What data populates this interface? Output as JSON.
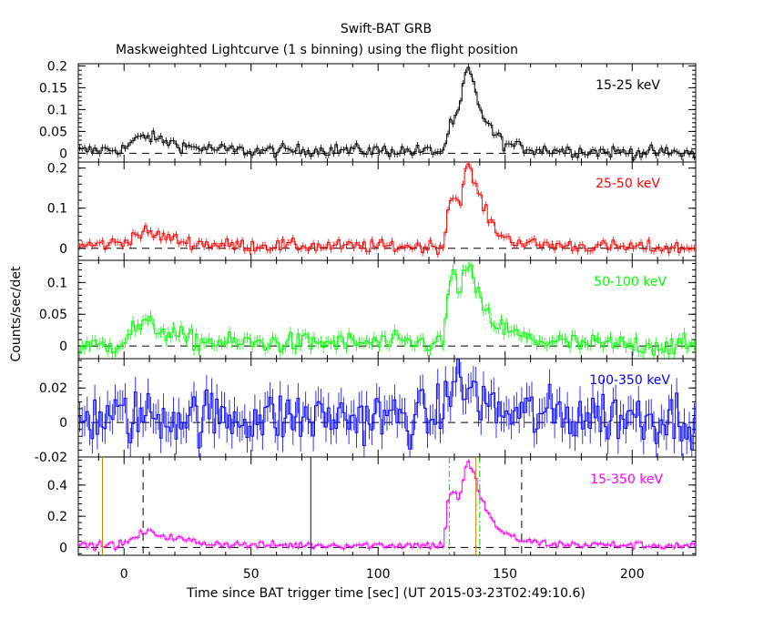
{
  "chart_data": {
    "type": "line",
    "title": "Swift-BAT GRB",
    "subtitle": "Maskweighted Lightcurve (1 s binning) using the flight position",
    "xlabel": "Time since BAT trigger time [sec] (UT 2015-03-23T02:49:10.6)",
    "ylabel": "Counts/sec/det",
    "xlim": [
      -18,
      225
    ],
    "xticks": [
      0,
      50,
      100,
      150,
      200
    ],
    "xtick_labels": [
      "0",
      "50",
      "100",
      "150",
      "200"
    ],
    "panels": [
      {
        "band": "15-25 keV",
        "color": "#000000",
        "ylim": [
          -0.02,
          0.205
        ],
        "yticks": [
          0,
          0.05,
          0.1,
          0.15,
          0.2
        ],
        "ytick_labels": [
          "0",
          "0.05",
          "0.1",
          "0.15",
          "0.2"
        ],
        "noise": 0.007,
        "profile": [
          [
            -18,
            0.005
          ],
          [
            0,
            0.01
          ],
          [
            3,
            0.025
          ],
          [
            8,
            0.04
          ],
          [
            15,
            0.03
          ],
          [
            25,
            0.015
          ],
          [
            35,
            0.01
          ],
          [
            50,
            0.005
          ],
          [
            80,
            0.008
          ],
          [
            120,
            0.005
          ],
          [
            126,
            0.005
          ],
          [
            127,
            0.04
          ],
          [
            128,
            0.06
          ],
          [
            131,
            0.08
          ],
          [
            133,
            0.13
          ],
          [
            135,
            0.2
          ],
          [
            137,
            0.17
          ],
          [
            139,
            0.12
          ],
          [
            142,
            0.08
          ],
          [
            145,
            0.05
          ],
          [
            150,
            0.02
          ],
          [
            160,
            0.01
          ],
          [
            180,
            0.005
          ],
          [
            225,
            0.0
          ]
        ]
      },
      {
        "band": "25-50 keV",
        "color": "#ff0000",
        "ylim": [
          -0.03,
          0.215
        ],
        "yticks": [
          0,
          0.1,
          0.2
        ],
        "ytick_labels": [
          "0",
          "0.1",
          "0.2"
        ],
        "noise": 0.008,
        "profile": [
          [
            -18,
            0.005
          ],
          [
            0,
            0.015
          ],
          [
            3,
            0.03
          ],
          [
            8,
            0.04
          ],
          [
            15,
            0.03
          ],
          [
            25,
            0.015
          ],
          [
            40,
            0.008
          ],
          [
            80,
            0.005
          ],
          [
            126,
            0.005
          ],
          [
            127,
            0.08
          ],
          [
            128,
            0.12
          ],
          [
            130,
            0.13
          ],
          [
            132,
            0.11
          ],
          [
            135,
            0.21
          ],
          [
            137,
            0.18
          ],
          [
            140,
            0.13
          ],
          [
            143,
            0.08
          ],
          [
            146,
            0.05
          ],
          [
            150,
            0.025
          ],
          [
            160,
            0.01
          ],
          [
            180,
            0.005
          ],
          [
            225,
            0.0
          ]
        ]
      },
      {
        "band": "50-100 keV",
        "color": "#00ff00",
        "ylim": [
          -0.02,
          0.135
        ],
        "yticks": [
          0,
          0.05,
          0.1
        ],
        "ytick_labels": [
          "0",
          "0.05",
          "0.1"
        ],
        "noise": 0.008,
        "profile": [
          [
            -18,
            0.0
          ],
          [
            -5,
            0.0
          ],
          [
            0,
            0.01
          ],
          [
            3,
            0.025
          ],
          [
            8,
            0.035
          ],
          [
            15,
            0.025
          ],
          [
            25,
            0.01
          ],
          [
            40,
            0.005
          ],
          [
            80,
            0.005
          ],
          [
            126,
            0.005
          ],
          [
            127,
            0.07
          ],
          [
            128,
            0.1
          ],
          [
            130,
            0.11
          ],
          [
            132,
            0.09
          ],
          [
            135,
            0.125
          ],
          [
            137,
            0.11
          ],
          [
            140,
            0.07
          ],
          [
            143,
            0.05
          ],
          [
            146,
            0.035
          ],
          [
            150,
            0.025
          ],
          [
            160,
            0.01
          ],
          [
            180,
            0.003
          ],
          [
            225,
            0.0
          ]
        ]
      },
      {
        "band": "100-350 keV",
        "color": "#0000ff",
        "ylim": [
          -0.02,
          0.037
        ],
        "yticks": [
          -0.02,
          0,
          0.02
        ],
        "ytick_labels": [
          "-0.02",
          "0",
          "0.02"
        ],
        "noise": 0.008,
        "profile": [
          [
            -18,
            0.003
          ],
          [
            0,
            0.003
          ],
          [
            10,
            0.004
          ],
          [
            60,
            0.003
          ],
          [
            120,
            0.003
          ],
          [
            126,
            0.005
          ],
          [
            127,
            0.02
          ],
          [
            129,
            0.025
          ],
          [
            133,
            0.02
          ],
          [
            137,
            0.018
          ],
          [
            140,
            0.015
          ],
          [
            145,
            0.008
          ],
          [
            150,
            0.005
          ],
          [
            225,
            0.003
          ]
        ]
      },
      {
        "band": "15-350 keV",
        "color": "#ff00ff",
        "ylim": [
          -0.05,
          0.58
        ],
        "yticks": [
          0,
          0.2,
          0.4
        ],
        "ytick_labels": [
          "0",
          "0.2",
          "0.4"
        ],
        "noise": 0.012,
        "profile": [
          [
            -18,
            0.01
          ],
          [
            0,
            0.02
          ],
          [
            3,
            0.05
          ],
          [
            8,
            0.1
          ],
          [
            12,
            0.09
          ],
          [
            20,
            0.06
          ],
          [
            30,
            0.03
          ],
          [
            50,
            0.015
          ],
          [
            80,
            0.015
          ],
          [
            126,
            0.015
          ],
          [
            127,
            0.25
          ],
          [
            128,
            0.35
          ],
          [
            130,
            0.36
          ],
          [
            132,
            0.3
          ],
          [
            135,
            0.55
          ],
          [
            137,
            0.5
          ],
          [
            140,
            0.35
          ],
          [
            143,
            0.22
          ],
          [
            146,
            0.15
          ],
          [
            150,
            0.08
          ],
          [
            158,
            0.04
          ],
          [
            170,
            0.02
          ],
          [
            225,
            0.01
          ]
        ]
      }
    ],
    "marker_lines": [
      {
        "panel": 4,
        "x": -8.5,
        "color": "#d08000",
        "style": "solid"
      },
      {
        "panel": 4,
        "x": 7.5,
        "color": "#000000",
        "style": "dashed"
      },
      {
        "panel": 4,
        "x": 73.5,
        "color": "#0000cc",
        "style": "solid"
      },
      {
        "panel": 4,
        "x": 128,
        "color": "#00cc00",
        "style": "dash-dot"
      },
      {
        "panel": 4,
        "x": 138.5,
        "color": "#d08000",
        "style": "solid"
      },
      {
        "panel": 4,
        "x": 140,
        "color": "#00cc00",
        "style": "dash-dot"
      },
      {
        "panel": 4,
        "x": 156.5,
        "color": "#000000",
        "style": "dashed"
      }
    ],
    "legend": "per-panel band label, top-right"
  }
}
